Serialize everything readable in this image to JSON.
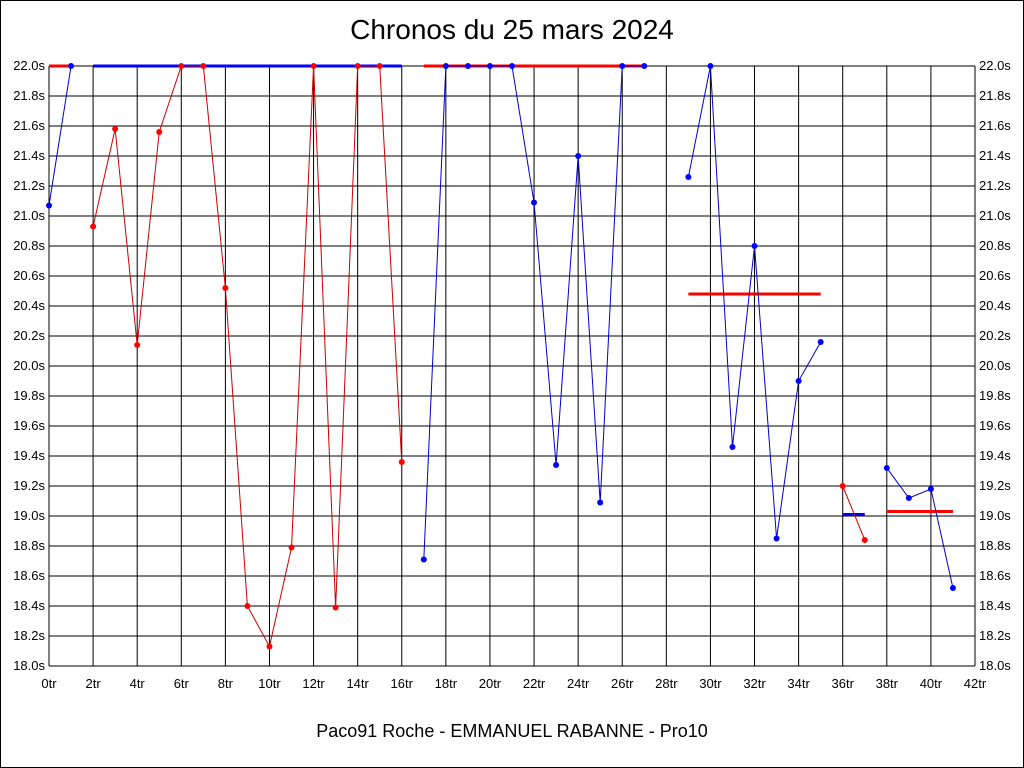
{
  "chart_data": {
    "type": "line",
    "title": "Chronos du 25 mars 2024",
    "subtitle": "Paco91 Roche - EMMANUEL RABANNE - Pro10",
    "xlim": [
      0,
      42
    ],
    "ylim": [
      18.0,
      22.0
    ],
    "x_ticks": [
      "0tr",
      "2tr",
      "4tr",
      "6tr",
      "8tr",
      "10tr",
      "12tr",
      "14tr",
      "16tr",
      "18tr",
      "20tr",
      "22tr",
      "24tr",
      "26tr",
      "28tr",
      "30tr",
      "32tr",
      "34tr",
      "36tr",
      "38tr",
      "40tr",
      "42tr"
    ],
    "y_ticks": [
      "18.0s",
      "18.2s",
      "18.4s",
      "18.6s",
      "18.8s",
      "19.0s",
      "19.2s",
      "19.4s",
      "19.6s",
      "19.8s",
      "20.0s",
      "20.2s",
      "20.4s",
      "20.6s",
      "20.8s",
      "21.0s",
      "21.2s",
      "21.4s",
      "21.6s",
      "21.8s",
      "22.0s"
    ],
    "grid": true,
    "colors": {
      "red": "#ff0000",
      "blue": "#0000ff",
      "red_line": "#cc0000",
      "blue_line": "#0000cc"
    },
    "series": [
      {
        "color": "blue",
        "x": [
          0,
          1
        ],
        "y": [
          21.07,
          22.0
        ]
      },
      {
        "color": "red",
        "x": [
          2,
          3,
          4,
          5,
          6,
          7,
          8,
          9,
          10,
          11,
          12,
          13,
          14,
          15,
          16
        ],
        "y": [
          20.93,
          21.58,
          20.14,
          21.56,
          22.0,
          22.0,
          20.52,
          18.4,
          18.13,
          18.79,
          22.0,
          18.39,
          22.0,
          22.0,
          19.36
        ]
      },
      {
        "color": "blue",
        "x": [
          17,
          18,
          19,
          20,
          21,
          22,
          23,
          24,
          25,
          26,
          27
        ],
        "y": [
          18.71,
          22.0,
          22.0,
          22.0,
          22.0,
          21.09,
          19.34,
          21.4,
          19.09,
          22.0,
          22.0
        ]
      },
      {
        "color": "blue",
        "x": [
          29,
          30,
          31,
          32,
          33,
          34,
          35
        ],
        "y": [
          21.26,
          22.0,
          19.46,
          20.8,
          18.85,
          19.9,
          20.16
        ]
      },
      {
        "color": "red",
        "x": [
          36,
          37
        ],
        "y": [
          19.2,
          18.84
        ]
      },
      {
        "color": "blue",
        "x": [
          38,
          39,
          40,
          41
        ],
        "y": [
          19.32,
          19.12,
          19.18,
          18.52
        ]
      }
    ],
    "averages": [
      {
        "color": "red",
        "x": [
          0,
          1
        ],
        "y": 22.0
      },
      {
        "color": "blue",
        "x": [
          2,
          16
        ],
        "y": 22.0
      },
      {
        "color": "red",
        "x": [
          17,
          27
        ],
        "y": 22.0
      },
      {
        "color": "red",
        "x": [
          29,
          35
        ],
        "y": 20.48
      },
      {
        "color": "blue",
        "x": [
          36,
          37
        ],
        "y": 19.01
      },
      {
        "color": "red",
        "x": [
          38,
          41
        ],
        "y": 19.03
      }
    ]
  }
}
